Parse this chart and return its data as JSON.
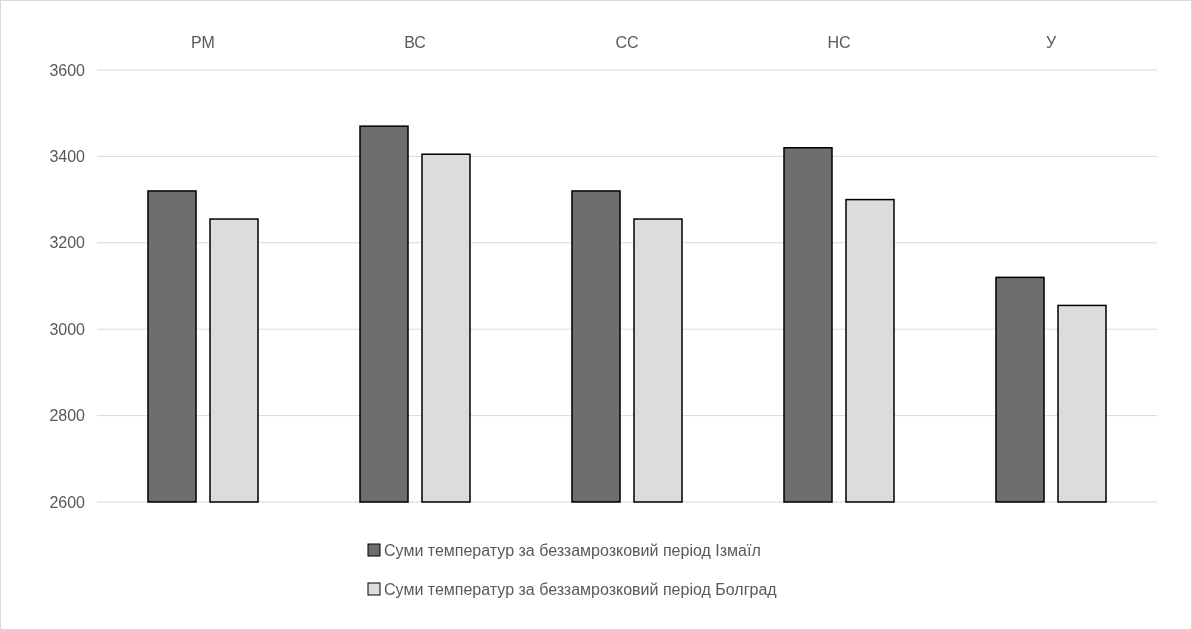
{
  "chart_data": {
    "type": "bar",
    "categories": [
      "РМ",
      "ВС",
      "СС",
      "НС",
      "У"
    ],
    "series": [
      {
        "name": "Суми температур за беззамрозковий період Ізмаїл",
        "color": "#6e6e6e",
        "values": [
          3320,
          3470,
          3320,
          3420,
          3120
        ]
      },
      {
        "name": "Суми температур за беззамрозковий період Болград",
        "color": "#dcdcdc",
        "values": [
          3255,
          3405,
          3255,
          3300,
          3055
        ]
      }
    ],
    "ylim": [
      2600,
      3600
    ],
    "yticks": [
      2600,
      2800,
      3000,
      3200,
      3400,
      3600
    ],
    "grid": "y",
    "legend": "bottom"
  }
}
